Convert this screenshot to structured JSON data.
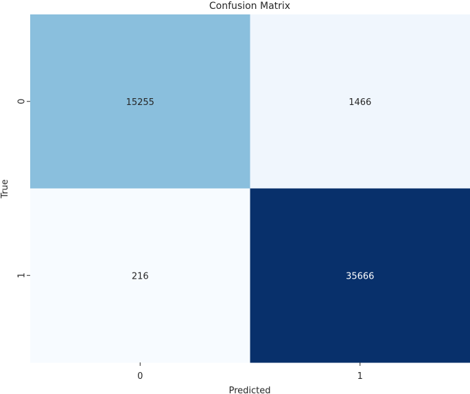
{
  "chart_data": {
    "type": "heatmap",
    "title": "Confusion Matrix",
    "xlabel": "Predicted",
    "ylabel": "True",
    "x_categories": [
      "0",
      "1"
    ],
    "y_categories": [
      "0",
      "1"
    ],
    "values": [
      [
        15255,
        1466
      ],
      [
        216,
        35666
      ]
    ],
    "colormap": "Blues",
    "colorbar": false,
    "grid": false
  }
}
